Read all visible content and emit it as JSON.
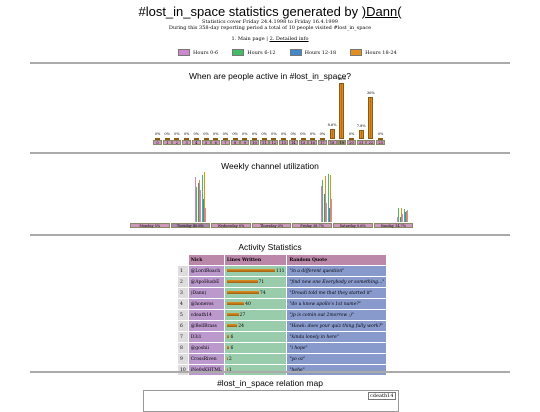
{
  "header": {
    "title_prefix": "#lost_in_space statistics generated by ",
    "title_link": ")Dann(",
    "subtitle1": "Statistics cover Friday 24.4.1998 to Friday 16.4.1999",
    "subtitle2": "During this 358-day reporting period a total of 10 people visited #lost_in_space"
  },
  "nav": {
    "main": "1. Main page",
    "sep": " | ",
    "detailed": "2. Detailed info"
  },
  "legend": [
    {
      "label": "Hours 0-6",
      "color": "#cc88cc"
    },
    {
      "label": "Hours 6-12",
      "color": "#44bb66"
    },
    {
      "label": "Hours 12-18",
      "color": "#4488cc"
    },
    {
      "label": "Hours 18-24",
      "color": "#e09020"
    }
  ],
  "hourly": {
    "title": "When are people active in #lost_in_space?",
    "hours": [
      "0",
      "1",
      "2",
      "3",
      "4",
      "5",
      "6",
      "7",
      "8",
      "9",
      "10",
      "11",
      "12",
      "13",
      "14",
      "15",
      "16",
      "17",
      "18",
      "19",
      "20",
      "21",
      "22",
      "23"
    ],
    "pct_labels": [
      "0%",
      "0%",
      "0%",
      "0%",
      "0%",
      "0%",
      "0%",
      "0%",
      "0%",
      "0%",
      "0%",
      "0%",
      "0%",
      "0%",
      "0%",
      "0%",
      "0%",
      "0%",
      "8.6%",
      "48%",
      "0%",
      "7.8%",
      "36%",
      "0%"
    ],
    "values": [
      0,
      0,
      0,
      0,
      0,
      0,
      0,
      0,
      0,
      0,
      0,
      0,
      0,
      0,
      0,
      0,
      0,
      0,
      8.6,
      48,
      0,
      7.8,
      36,
      0
    ]
  },
  "weekly": {
    "title": "Weekly channel utilization",
    "days": [
      "Monday 5%",
      "Tuesday 40.6%",
      "Wednesday 0%",
      "Thursday 0%",
      "Friday 38.7%",
      "Saturday 0.6%",
      "Sunday 14.7%"
    ],
    "highlight": 1
  },
  "activity": {
    "title": "Activity Statistics",
    "headers": [
      "Nick",
      "Lines Written",
      "Random Quote"
    ],
    "rows": [
      {
        "n": "1",
        "nick": "@LordRoach",
        "lines": "111",
        "quote": "\"in a different question\""
      },
      {
        "n": "2",
        "nick": "@ApoHusbE",
        "lines": "71",
        "quote": "\"find new one Everybody or something...\""
      },
      {
        "n": "3",
        "nick": ")Dann(",
        "lines": "74",
        "quote": "\"Dreadi told me that they started it\""
      },
      {
        "n": "4",
        "nick": "@honeros",
        "lines": "40",
        "quote": "\"do u know apollo's 1st name?\""
      },
      {
        "n": "5",
        "nick": "cdeath14",
        "lines": "27",
        "quote": "\"jp is comin out 2morrow ;)\""
      },
      {
        "n": "6",
        "nick": "@BellBrass",
        "lines": "24",
        "quote": "\"Hawk: does your quiz thing fully work?\""
      },
      {
        "n": "7",
        "nick": "D3i1",
        "lines": "6",
        "quote": "\"kinda lonely in here\""
      },
      {
        "n": "8",
        "nick": "@goshii",
        "lines": "6",
        "quote": "\"i hope\""
      },
      {
        "n": "9",
        "nick": "CrossRiven",
        "lines": "2",
        "quote": "\"yo oz\""
      },
      {
        "n": "10",
        "nick": "iNe0sKHTML",
        "lines": "1",
        "quote": "\"hehe\""
      }
    ],
    "line_values": [
      111,
      71,
      74,
      40,
      27,
      24,
      6,
      6,
      2,
      1
    ]
  },
  "relation": {
    "title": "#lost_in_space relation map",
    "tag": "cdeath14"
  }
}
